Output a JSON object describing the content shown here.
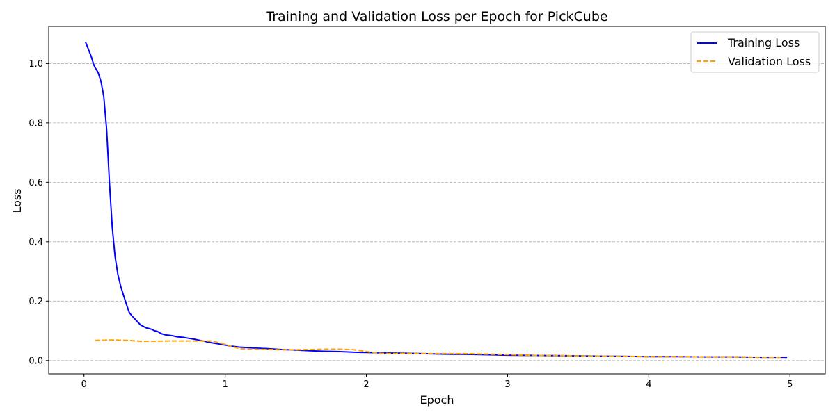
{
  "chart_data": {
    "type": "line",
    "title": "Training and Validation Loss per Epoch for PickCube",
    "xlabel": "Epoch",
    "ylabel": "Loss",
    "xlim": [
      -0.25,
      5.25
    ],
    "ylim": [
      -0.045,
      1.125
    ],
    "xticks": [
      0,
      1,
      2,
      3,
      4,
      5
    ],
    "xtick_labels": [
      "0",
      "1",
      "2",
      "3",
      "4",
      "5"
    ],
    "yticks": [
      0.0,
      0.2,
      0.4,
      0.6,
      0.8,
      1.0
    ],
    "ytick_labels": [
      "0.0",
      "0.2",
      "0.4",
      "0.6",
      "0.8",
      "1.0"
    ],
    "grid": "y-dashed",
    "legend_position": "top-right",
    "series": [
      {
        "name": "Training Loss",
        "color": "#0000ff",
        "style": "solid",
        "x": [
          0.01,
          0.03,
          0.05,
          0.07,
          0.08,
          0.1,
          0.12,
          0.14,
          0.16,
          0.18,
          0.2,
          0.22,
          0.24,
          0.26,
          0.28,
          0.3,
          0.32,
          0.34,
          0.36,
          0.38,
          0.4,
          0.42,
          0.44,
          0.46,
          0.48,
          0.5,
          0.52,
          0.55,
          0.58,
          0.6,
          0.63,
          0.66,
          0.7,
          0.74,
          0.78,
          0.82,
          0.86,
          0.9,
          0.95,
          1.0,
          1.05,
          1.1,
          1.2,
          1.3,
          1.4,
          1.5,
          1.6,
          1.7,
          1.8,
          1.9,
          2.0,
          2.1,
          2.2,
          2.3,
          2.4,
          2.5,
          2.6,
          2.7,
          2.8,
          2.9,
          3.0,
          3.2,
          3.4,
          3.6,
          3.8,
          4.0,
          4.2,
          4.4,
          4.6,
          4.8,
          4.98
        ],
        "y": [
          1.073,
          1.05,
          1.025,
          0.995,
          0.985,
          0.97,
          0.94,
          0.89,
          0.78,
          0.6,
          0.45,
          0.35,
          0.29,
          0.25,
          0.22,
          0.19,
          0.162,
          0.15,
          0.14,
          0.13,
          0.12,
          0.115,
          0.11,
          0.108,
          0.105,
          0.1,
          0.098,
          0.09,
          0.086,
          0.085,
          0.083,
          0.08,
          0.078,
          0.075,
          0.072,
          0.068,
          0.064,
          0.06,
          0.056,
          0.052,
          0.048,
          0.045,
          0.042,
          0.04,
          0.037,
          0.035,
          0.033,
          0.031,
          0.03,
          0.028,
          0.027,
          0.026,
          0.025,
          0.024,
          0.023,
          0.022,
          0.021,
          0.021,
          0.02,
          0.019,
          0.018,
          0.017,
          0.016,
          0.015,
          0.014,
          0.013,
          0.013,
          0.012,
          0.012,
          0.011,
          0.011
        ]
      },
      {
        "name": "Validation Loss",
        "color": "#ffa500",
        "style": "dashed",
        "x": [
          0.08,
          0.2,
          0.3,
          0.4,
          0.5,
          0.6,
          0.7,
          0.8,
          0.9,
          1.0,
          1.1,
          1.2,
          1.3,
          1.4,
          1.5,
          1.6,
          1.7,
          1.8,
          1.9,
          2.0,
          2.1,
          2.2,
          2.3,
          2.4,
          2.5,
          2.6,
          2.7,
          2.8,
          2.9,
          3.0,
          3.2,
          3.4,
          3.6,
          3.8,
          4.0,
          4.2,
          4.4,
          4.6,
          4.8,
          4.95
        ],
        "y": [
          0.068,
          0.069,
          0.068,
          0.065,
          0.065,
          0.066,
          0.066,
          0.066,
          0.066,
          0.055,
          0.04,
          0.038,
          0.037,
          0.036,
          0.036,
          0.037,
          0.038,
          0.038,
          0.037,
          0.03,
          0.024,
          0.023,
          0.023,
          0.023,
          0.023,
          0.023,
          0.023,
          0.022,
          0.021,
          0.02,
          0.017,
          0.016,
          0.015,
          0.014,
          0.013,
          0.013,
          0.012,
          0.012,
          0.011,
          0.011
        ]
      }
    ]
  }
}
